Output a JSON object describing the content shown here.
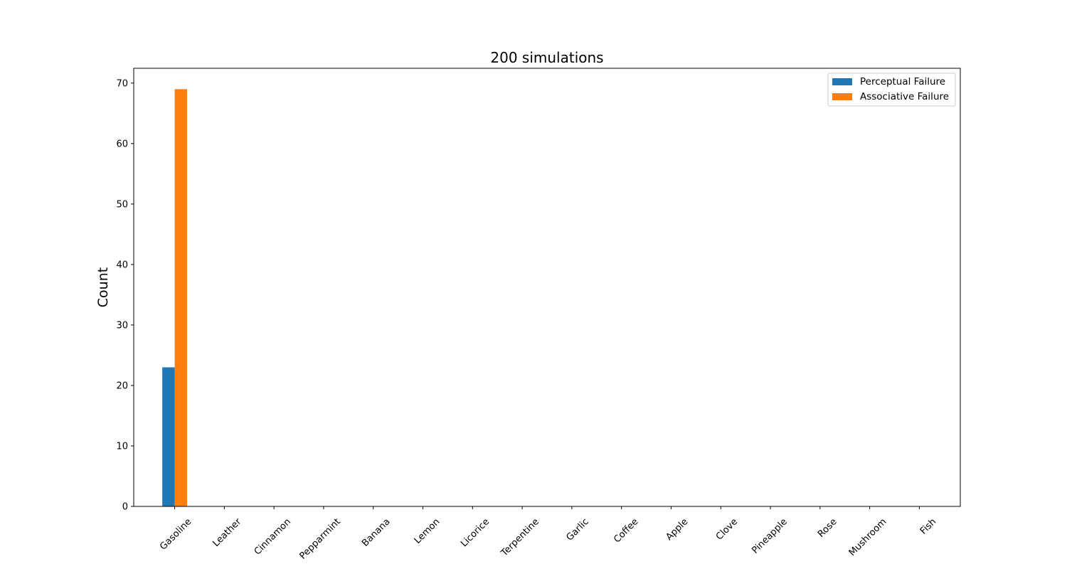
{
  "chart_data": {
    "type": "bar",
    "title": "200 simulations",
    "xlabel": "",
    "ylabel": "Count",
    "categories": [
      "Gasoline",
      "Leather",
      "Cinnamon",
      "Pepparmint",
      "Banana",
      "Lemon",
      "Licorice",
      "Terpentine",
      "Garlic",
      "Coffee",
      "Apple",
      "Clove",
      "Pineapple",
      "Rose",
      "Mushroom",
      "Fish"
    ],
    "series": [
      {
        "name": "Perceptual Failure",
        "color": "#1f77b4",
        "values": [
          23,
          0,
          0,
          0,
          0,
          0,
          0,
          0,
          0,
          0,
          0,
          0,
          0,
          0,
          0,
          0
        ]
      },
      {
        "name": "Associative Failure",
        "color": "#ff7f0e",
        "values": [
          69,
          0,
          0,
          0,
          0,
          0,
          0,
          0,
          0,
          0,
          0,
          0,
          0,
          0,
          0,
          0
        ]
      }
    ],
    "ylim": [
      0,
      72.45
    ],
    "yticks": [
      0,
      10,
      20,
      30,
      40,
      50,
      60,
      70
    ],
    "grid": false,
    "legend_position": "top-right"
  }
}
